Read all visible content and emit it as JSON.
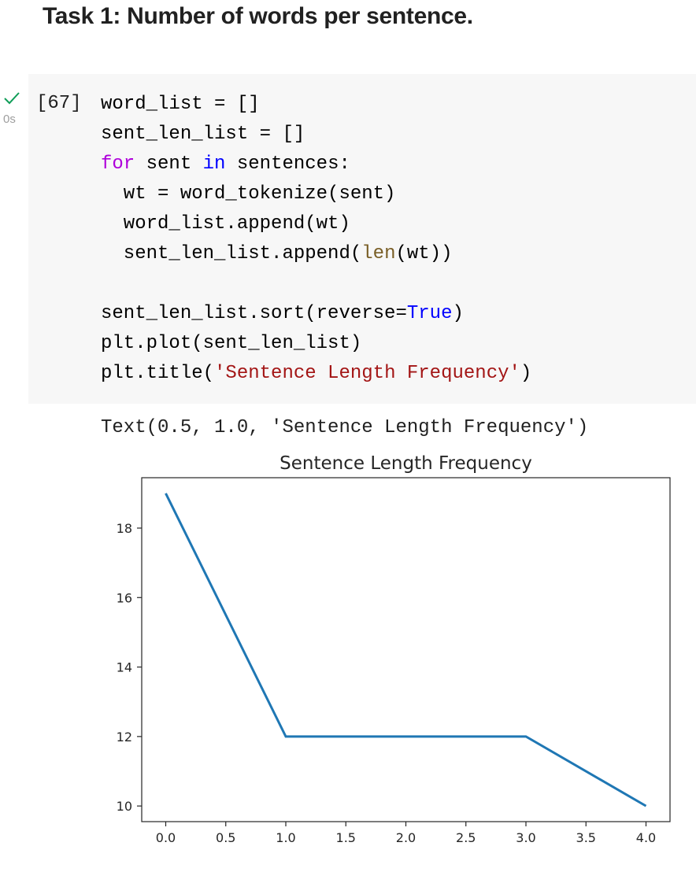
{
  "heading": "Task 1: Number of words per sentence.",
  "cell": {
    "execution_count": "[67]",
    "run_time": "0s",
    "status_icon": "check-icon",
    "status_color": "#0f9d58",
    "code_lines": [
      [
        {
          "t": "word_list = []",
          "c": ""
        }
      ],
      [
        {
          "t": "sent_len_list = []",
          "c": ""
        }
      ],
      [
        {
          "t": "for",
          "c": "kw"
        },
        {
          "t": " sent ",
          "c": ""
        },
        {
          "t": "in",
          "c": "kw-blue"
        },
        {
          "t": " sentences:",
          "c": ""
        }
      ],
      [
        {
          "t": "  wt = word_tokenize(sent)",
          "c": ""
        }
      ],
      [
        {
          "t": "  word_list.append(wt)",
          "c": ""
        }
      ],
      [
        {
          "t": "  sent_len_list.append(",
          "c": ""
        },
        {
          "t": "len",
          "c": "builtin"
        },
        {
          "t": "(wt))",
          "c": ""
        }
      ],
      [
        {
          "t": "",
          "c": ""
        }
      ],
      [
        {
          "t": "sent_len_list.sort(reverse=",
          "c": ""
        },
        {
          "t": "True",
          "c": "const"
        },
        {
          "t": ")",
          "c": ""
        }
      ],
      [
        {
          "t": "plt.plot(sent_len_list)",
          "c": ""
        }
      ],
      [
        {
          "t": "plt.title(",
          "c": ""
        },
        {
          "t": "'Sentence Length Frequency'",
          "c": "str"
        },
        {
          "t": ")",
          "c": ""
        }
      ]
    ]
  },
  "output": {
    "text": "Text(0.5, 1.0, 'Sentence Length Frequency')"
  },
  "chart_data": {
    "type": "line",
    "title": "Sentence Length Frequency",
    "xlabel": "",
    "ylabel": "",
    "x": [
      0,
      1,
      2,
      3,
      4
    ],
    "series": [
      {
        "values": [
          19,
          12,
          12,
          12,
          10
        ],
        "color": "#1f77b4"
      }
    ],
    "xlim": [
      -0.2,
      4.2
    ],
    "ylim": [
      9.55,
      19.45
    ],
    "xticks": [
      0.0,
      0.5,
      1.0,
      1.5,
      2.0,
      2.5,
      3.0,
      3.5,
      4.0
    ],
    "xtick_labels": [
      "0.0",
      "0.5",
      "1.0",
      "1.5",
      "2.0",
      "2.5",
      "3.0",
      "3.5",
      "4.0"
    ],
    "yticks": [
      10,
      12,
      14,
      16,
      18
    ],
    "ytick_labels": [
      "10",
      "12",
      "14",
      "16",
      "18"
    ],
    "grid": false
  }
}
